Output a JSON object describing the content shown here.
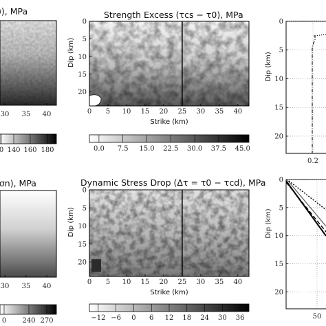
{
  "chart_data": [
    {
      "type": "heatmap",
      "title": "σ), MPa",
      "xticks": [
        "30",
        "35",
        "40"
      ],
      "colorbar_ticks": [
        "0",
        "140",
        "160",
        "180"
      ],
      "notes": "cropped panel: vertical gradient light (top) to dark (bottom) with grainy texture"
    },
    {
      "type": "heatmap",
      "title": "Strength Excess (τcs − τ0), MPa",
      "xlabel": "Strike (km)",
      "ylabel": "Dip (km)",
      "xticks": [
        "0",
        "5",
        "10",
        "15",
        "20",
        "25",
        "30",
        "35",
        "40"
      ],
      "yticks": [
        "0",
        "5",
        "10",
        "15",
        "20"
      ],
      "xlim": [
        0,
        43
      ],
      "ylim": [
        24,
        0
      ],
      "vline_x": 25,
      "colorbar_ticks": [
        "0.0",
        "7.5",
        "15.0",
        "22.5",
        "30.0",
        "37.5",
        "45.0"
      ],
      "colorbar_range": [
        -3,
        47
      ]
    },
    {
      "type": "line",
      "ylabel": "Dip (km)",
      "yticks": [
        "0",
        "5",
        "10",
        "15",
        "20"
      ],
      "xticks": [
        "0.2"
      ],
      "ylim": [
        23,
        0
      ],
      "grid": true,
      "notes": "cropped panel: dash-dot profile near x=0.2, dotted marker near top"
    },
    {
      "type": "heatmap",
      "title": "(σn), MPa",
      "xticks": [
        "30",
        "35",
        "40"
      ],
      "colorbar_ticks": [
        "0",
        "240",
        "270"
      ],
      "notes": "cropped panel: smooth vertical gradient white (top) to dark gray (bottom)"
    },
    {
      "type": "heatmap",
      "title": "Dynamic Stress Drop (Δτ = τ0 − τcd), MPa",
      "xlabel": "Strike (km)",
      "ylabel": "Dip (km)",
      "xticks": [
        "0",
        "5",
        "10",
        "15",
        "20",
        "25",
        "30",
        "35",
        "40"
      ],
      "yticks": [
        "0",
        "5",
        "10",
        "15",
        "20"
      ],
      "xlim": [
        0,
        43
      ],
      "ylim": [
        24,
        0
      ],
      "vline_x": 25,
      "colorbar_ticks": [
        "−12",
        "−6",
        "0",
        "6",
        "12",
        "18",
        "24",
        "30",
        "36"
      ],
      "colorbar_range": [
        -15,
        39
      ]
    },
    {
      "type": "line",
      "ylabel": "Dip (km)",
      "yticks": [
        "0",
        "5",
        "10",
        "15",
        "20"
      ],
      "xticks": [
        "50"
      ],
      "ylim": [
        23,
        0
      ],
      "grid": true,
      "notes": "cropped panel: several decreasing lines (solid, dashed, dotted) from top-left"
    }
  ]
}
